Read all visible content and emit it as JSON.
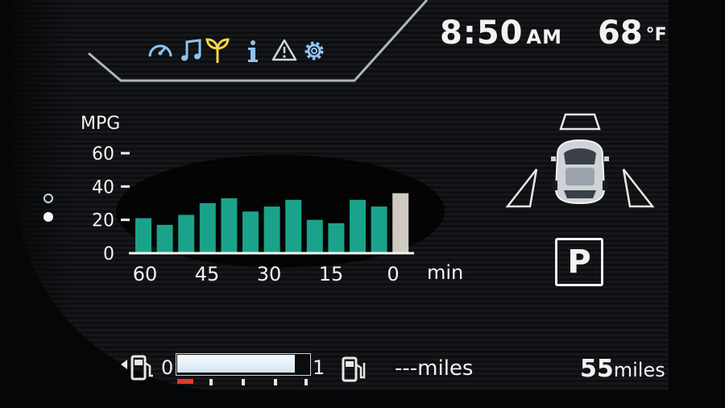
{
  "menu": {
    "icons": [
      {
        "name": "speedometer-icon",
        "color": "#8fc3f0"
      },
      {
        "name": "music-note-icon",
        "color": "#8fc3f0"
      },
      {
        "name": "eco-leaf-icon",
        "color": "#f4d64a",
        "active": true
      },
      {
        "name": "info-icon",
        "color": "#8fc3f0"
      },
      {
        "name": "warning-icon",
        "color": "#cfd6de"
      },
      {
        "name": "settings-gear-icon",
        "color": "#8fc3f0"
      }
    ]
  },
  "status": {
    "time": "8:50",
    "ampm": "AM",
    "temperature": "68",
    "temperature_unit": "°F"
  },
  "chart_data": {
    "type": "bar",
    "ylabel": "MPG",
    "xlabel": "min",
    "ylim": [
      0,
      60
    ],
    "yticks": [
      "0",
      "20",
      "40",
      "60"
    ],
    "xticks": [
      "60",
      "45",
      "30",
      "15",
      "0"
    ],
    "values": [
      21,
      17,
      23,
      30,
      33,
      25,
      28,
      32,
      20,
      18,
      32,
      28,
      36
    ],
    "bar_color": "#1aa38a",
    "current_bar_color": "#cfcac0"
  },
  "pagination": {
    "pages": 2,
    "active": 2
  },
  "park_indicator": "P",
  "range": {
    "gauge_min": "0",
    "gauge_max": "1",
    "gauge_level": 0.9,
    "left_value": "---miles",
    "right_number": "55",
    "right_unit": "miles"
  }
}
